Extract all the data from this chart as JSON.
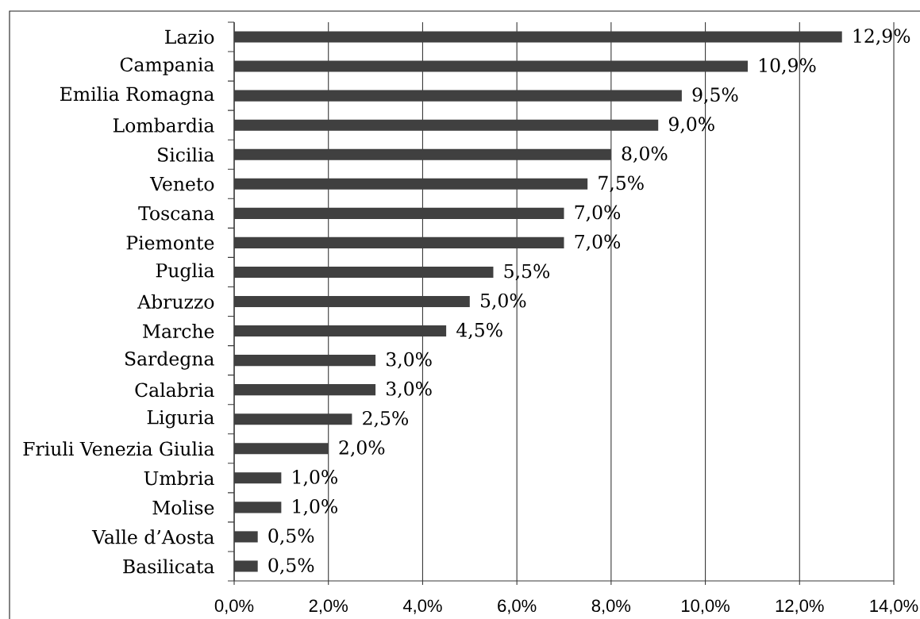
{
  "chart_data": {
    "type": "bar",
    "orientation": "horizontal",
    "categories": [
      "Lazio",
      "Campania",
      "Emilia Romagna",
      "Lombardia",
      "Sicilia",
      "Veneto",
      "Toscana",
      "Piemonte",
      "Puglia",
      "Abruzzo",
      "Marche",
      "Sardegna",
      "Calabria",
      "Liguria",
      "Friuli Venezia Giulia",
      "Umbria",
      "Molise",
      "Valle d’Aosta",
      "Basilicata"
    ],
    "values": [
      12.9,
      10.9,
      9.5,
      9.0,
      8.0,
      7.5,
      7.0,
      7.0,
      5.5,
      5.0,
      4.5,
      3.0,
      3.0,
      2.5,
      2.0,
      1.0,
      1.0,
      0.5,
      0.5
    ],
    "value_labels": [
      "12,9%",
      "10,9%",
      "9,5%",
      "9,0%",
      "8,0%",
      "7,5%",
      "7,0%",
      "7,0%",
      "5,5%",
      "5,0%",
      "4,5%",
      "3,0%",
      "3,0%",
      "2,5%",
      "2,0%",
      "1,0%",
      "1,0%",
      "0,5%",
      "0,5%"
    ],
    "color": "#404040",
    "xlim": [
      0,
      14
    ],
    "xticks": [
      {
        "value": 0,
        "label": "0,0%"
      },
      {
        "value": 2,
        "label": "2,0%"
      },
      {
        "value": 4,
        "label": "4,0%"
      },
      {
        "value": 6,
        "label": "6,0%"
      },
      {
        "value": 8,
        "label": "8,0%"
      },
      {
        "value": 10,
        "label": "10,0%"
      },
      {
        "value": 12,
        "label": "12,0%"
      },
      {
        "value": 14,
        "label": "14,0%"
      }
    ],
    "grid": "x"
  }
}
